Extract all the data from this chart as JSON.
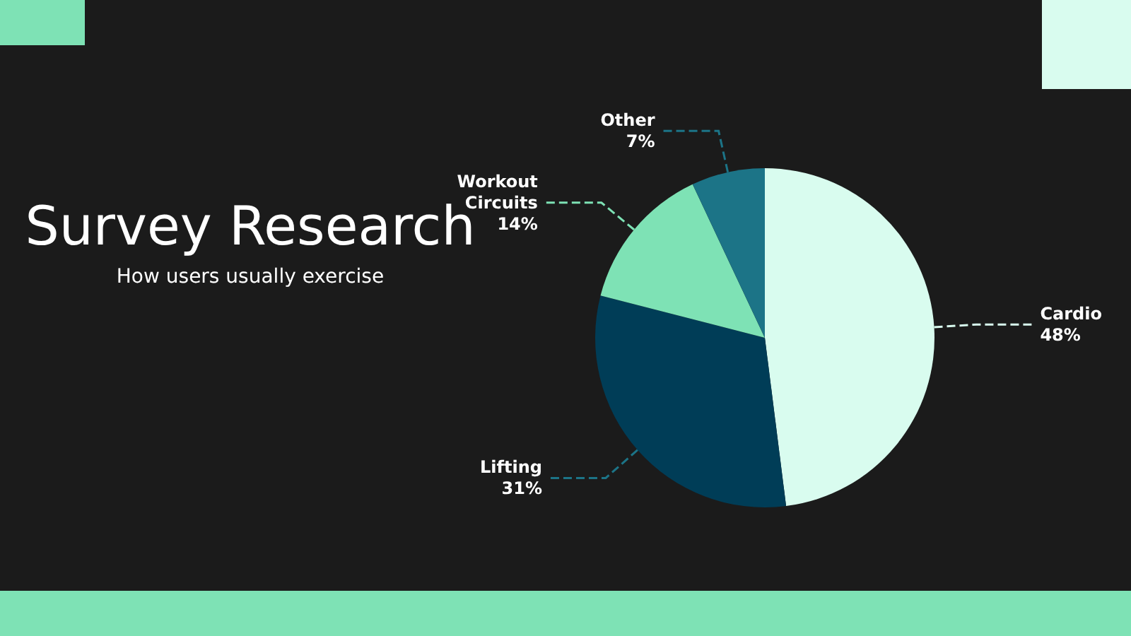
{
  "chart_data": {
    "type": "pie",
    "title": "Survey Research",
    "subtitle": "How users usually exercise",
    "categories": [
      "Cardio",
      "Lifting",
      "Workout\nCircuits",
      "Other"
    ],
    "values": [
      48,
      31,
      14,
      7
    ],
    "value_labels": [
      "48%",
      "31%",
      "14%",
      "7%"
    ],
    "colors": [
      "#d9fcef",
      "#003d57",
      "#7ee2b5",
      "#1c7487"
    ]
  }
}
